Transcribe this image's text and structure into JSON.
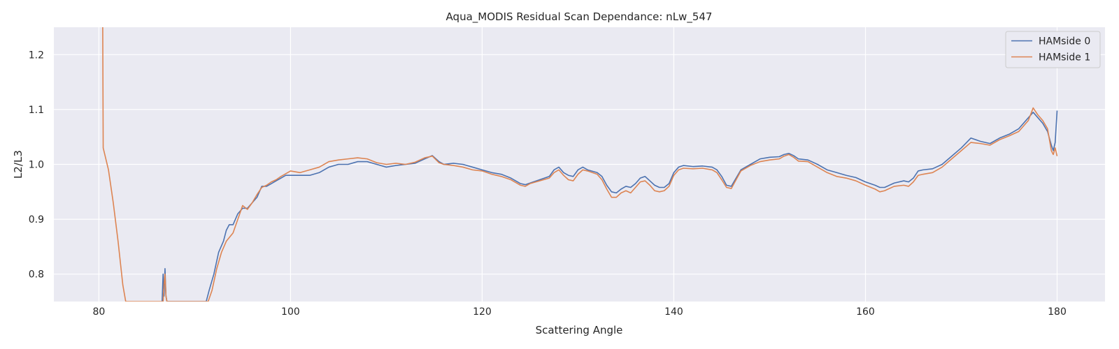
{
  "chart_data": {
    "type": "line",
    "title": "Aqua_MODIS Residual Scan Dependance: nLw_547",
    "xlabel": "Scattering Angle",
    "ylabel": "L2/L3",
    "xlim": [
      75.3,
      185
    ],
    "ylim": [
      0.75,
      1.25
    ],
    "xticks": [
      80,
      100,
      120,
      140,
      160,
      180
    ],
    "yticks": [
      0.8,
      0.9,
      1.0,
      1.1,
      1.2
    ],
    "xtick_labels": [
      "80",
      "100",
      "120",
      "140",
      "160",
      "180"
    ],
    "ytick_labels": [
      "0.8",
      "0.9",
      "1.0",
      "1.1",
      "1.2"
    ],
    "grid": true,
    "legend_position": "top-right",
    "series": [
      {
        "name": "HAMside 0",
        "color": "#4c72b0",
        "points": [
          [
            86.6,
            0.75
          ],
          [
            86.7,
            0.8
          ],
          [
            86.8,
            0.76
          ],
          [
            86.9,
            0.81
          ],
          [
            87.0,
            0.76
          ],
          [
            87.1,
            0.75
          ],
          [
            91.2,
            0.75
          ],
          [
            91.5,
            0.77
          ],
          [
            92.0,
            0.8
          ],
          [
            92.5,
            0.84
          ],
          [
            93.0,
            0.86
          ],
          [
            93.3,
            0.88
          ],
          [
            93.6,
            0.89
          ],
          [
            94.0,
            0.89
          ],
          [
            94.5,
            0.91
          ],
          [
            95.0,
            0.92
          ],
          [
            95.5,
            0.92
          ],
          [
            96.0,
            0.93
          ],
          [
            96.5,
            0.94
          ],
          [
            97.0,
            0.96
          ],
          [
            97.5,
            0.96
          ],
          [
            98.0,
            0.965
          ],
          [
            98.5,
            0.97
          ],
          [
            99.0,
            0.975
          ],
          [
            99.5,
            0.98
          ],
          [
            100.0,
            0.98
          ],
          [
            101.0,
            0.98
          ],
          [
            102.0,
            0.98
          ],
          [
            103.0,
            0.985
          ],
          [
            104.0,
            0.995
          ],
          [
            105.0,
            1.0
          ],
          [
            106.0,
            1.0
          ],
          [
            107.0,
            1.005
          ],
          [
            108.0,
            1.005
          ],
          [
            109.0,
            1.0
          ],
          [
            110.0,
            0.995
          ],
          [
            111.0,
            0.998
          ],
          [
            112.0,
            1.0
          ],
          [
            113.0,
            1.002
          ],
          [
            114.0,
            1.01
          ],
          [
            114.8,
            1.016
          ],
          [
            115.5,
            1.005
          ],
          [
            116.0,
            1.0
          ],
          [
            117.0,
            1.002
          ],
          [
            118.0,
            1.0
          ],
          [
            119.0,
            0.995
          ],
          [
            120.0,
            0.99
          ],
          [
            121.0,
            0.985
          ],
          [
            122.0,
            0.982
          ],
          [
            123.0,
            0.975
          ],
          [
            124.0,
            0.965
          ],
          [
            124.5,
            0.963
          ],
          [
            125.0,
            0.966
          ],
          [
            126.0,
            0.972
          ],
          [
            127.0,
            0.978
          ],
          [
            127.5,
            0.99
          ],
          [
            128.0,
            0.995
          ],
          [
            128.5,
            0.985
          ],
          [
            129.0,
            0.98
          ],
          [
            129.5,
            0.978
          ],
          [
            130.0,
            0.99
          ],
          [
            130.5,
            0.995
          ],
          [
            131.0,
            0.99
          ],
          [
            132.0,
            0.985
          ],
          [
            132.5,
            0.978
          ],
          [
            133.0,
            0.962
          ],
          [
            133.5,
            0.95
          ],
          [
            134.0,
            0.948
          ],
          [
            134.5,
            0.955
          ],
          [
            135.0,
            0.96
          ],
          [
            135.5,
            0.958
          ],
          [
            136.0,
            0.965
          ],
          [
            136.5,
            0.975
          ],
          [
            137.0,
            0.978
          ],
          [
            137.5,
            0.97
          ],
          [
            138.0,
            0.962
          ],
          [
            138.5,
            0.958
          ],
          [
            139.0,
            0.958
          ],
          [
            139.5,
            0.965
          ],
          [
            140.0,
            0.985
          ],
          [
            140.5,
            0.995
          ],
          [
            141.0,
            0.998
          ],
          [
            142.0,
            0.996
          ],
          [
            143.0,
            0.997
          ],
          [
            144.0,
            0.995
          ],
          [
            144.5,
            0.99
          ],
          [
            145.0,
            0.978
          ],
          [
            145.5,
            0.962
          ],
          [
            146.0,
            0.96
          ],
          [
            146.5,
            0.975
          ],
          [
            147.0,
            0.99
          ],
          [
            148.0,
            1.0
          ],
          [
            149.0,
            1.01
          ],
          [
            150.0,
            1.013
          ],
          [
            151.0,
            1.014
          ],
          [
            151.5,
            1.018
          ],
          [
            152.0,
            1.02
          ],
          [
            152.5,
            1.016
          ],
          [
            153.0,
            1.01
          ],
          [
            154.0,
            1.008
          ],
          [
            155.0,
            1.0
          ],
          [
            156.0,
            0.99
          ],
          [
            157.0,
            0.985
          ],
          [
            158.0,
            0.98
          ],
          [
            159.0,
            0.976
          ],
          [
            160.0,
            0.968
          ],
          [
            161.0,
            0.962
          ],
          [
            161.5,
            0.958
          ],
          [
            162.0,
            0.958
          ],
          [
            163.0,
            0.966
          ],
          [
            164.0,
            0.97
          ],
          [
            164.5,
            0.968
          ],
          [
            165.0,
            0.975
          ],
          [
            165.5,
            0.988
          ],
          [
            166.0,
            0.99
          ],
          [
            167.0,
            0.992
          ],
          [
            168.0,
            1.0
          ],
          [
            169.0,
            1.015
          ],
          [
            170.0,
            1.03
          ],
          [
            171.0,
            1.048
          ],
          [
            172.0,
            1.042
          ],
          [
            173.0,
            1.038
          ],
          [
            174.0,
            1.048
          ],
          [
            175.0,
            1.055
          ],
          [
            176.0,
            1.065
          ],
          [
            177.0,
            1.085
          ],
          [
            177.5,
            1.095
          ],
          [
            178.0,
            1.085
          ],
          [
            178.5,
            1.075
          ],
          [
            179.0,
            1.06
          ],
          [
            179.4,
            1.035
          ],
          [
            179.6,
            1.025
          ],
          [
            179.8,
            1.04
          ],
          [
            180.0,
            1.098
          ]
        ]
      },
      {
        "name": "HAMside 1",
        "color": "#dd8452",
        "points": [
          [
            80.4,
            1.25
          ],
          [
            80.45,
            1.03
          ],
          [
            81.0,
            0.99
          ],
          [
            81.5,
            0.93
          ],
          [
            82.0,
            0.86
          ],
          [
            82.5,
            0.78
          ],
          [
            82.8,
            0.75
          ],
          [
            86.7,
            0.75
          ],
          [
            86.8,
            0.78
          ],
          [
            86.9,
            0.8
          ],
          [
            87.0,
            0.76
          ],
          [
            87.1,
            0.75
          ],
          [
            91.4,
            0.75
          ],
          [
            91.8,
            0.77
          ],
          [
            92.3,
            0.81
          ],
          [
            92.8,
            0.84
          ],
          [
            93.3,
            0.86
          ],
          [
            94.0,
            0.875
          ],
          [
            94.5,
            0.9
          ],
          [
            95.0,
            0.925
          ],
          [
            95.5,
            0.918
          ],
          [
            96.0,
            0.93
          ],
          [
            96.5,
            0.945
          ],
          [
            97.0,
            0.958
          ],
          [
            97.5,
            0.962
          ],
          [
            98.0,
            0.968
          ],
          [
            98.5,
            0.972
          ],
          [
            99.0,
            0.978
          ],
          [
            100.0,
            0.988
          ],
          [
            101.0,
            0.985
          ],
          [
            102.0,
            0.99
          ],
          [
            103.0,
            0.995
          ],
          [
            104.0,
            1.005
          ],
          [
            105.0,
            1.008
          ],
          [
            106.0,
            1.01
          ],
          [
            107.0,
            1.012
          ],
          [
            108.0,
            1.01
          ],
          [
            109.0,
            1.003
          ],
          [
            110.0,
            1.0
          ],
          [
            111.0,
            1.002
          ],
          [
            112.0,
            1.0
          ],
          [
            113.0,
            1.004
          ],
          [
            114.0,
            1.012
          ],
          [
            114.8,
            1.015
          ],
          [
            115.5,
            1.003
          ],
          [
            116.0,
            1.0
          ],
          [
            117.0,
            0.998
          ],
          [
            118.0,
            0.995
          ],
          [
            119.0,
            0.99
          ],
          [
            120.0,
            0.988
          ],
          [
            121.0,
            0.982
          ],
          [
            122.0,
            0.978
          ],
          [
            123.0,
            0.972
          ],
          [
            124.0,
            0.962
          ],
          [
            124.5,
            0.96
          ],
          [
            125.0,
            0.965
          ],
          [
            126.0,
            0.97
          ],
          [
            127.0,
            0.975
          ],
          [
            127.5,
            0.985
          ],
          [
            128.0,
            0.99
          ],
          [
            128.5,
            0.98
          ],
          [
            129.0,
            0.972
          ],
          [
            129.5,
            0.97
          ],
          [
            130.0,
            0.982
          ],
          [
            130.5,
            0.99
          ],
          [
            131.0,
            0.988
          ],
          [
            132.0,
            0.982
          ],
          [
            132.5,
            0.972
          ],
          [
            133.0,
            0.955
          ],
          [
            133.5,
            0.94
          ],
          [
            134.0,
            0.94
          ],
          [
            134.5,
            0.948
          ],
          [
            135.0,
            0.952
          ],
          [
            135.5,
            0.948
          ],
          [
            136.0,
            0.958
          ],
          [
            136.5,
            0.968
          ],
          [
            137.0,
            0.97
          ],
          [
            137.5,
            0.962
          ],
          [
            138.0,
            0.952
          ],
          [
            138.5,
            0.95
          ],
          [
            139.0,
            0.952
          ],
          [
            139.5,
            0.96
          ],
          [
            140.0,
            0.98
          ],
          [
            140.5,
            0.99
          ],
          [
            141.0,
            0.993
          ],
          [
            142.0,
            0.992
          ],
          [
            143.0,
            0.993
          ],
          [
            144.0,
            0.99
          ],
          [
            144.5,
            0.985
          ],
          [
            145.0,
            0.972
          ],
          [
            145.5,
            0.958
          ],
          [
            146.0,
            0.956
          ],
          [
            146.5,
            0.972
          ],
          [
            147.0,
            0.988
          ],
          [
            148.0,
            0.998
          ],
          [
            149.0,
            1.005
          ],
          [
            150.0,
            1.008
          ],
          [
            151.0,
            1.01
          ],
          [
            151.5,
            1.015
          ],
          [
            152.0,
            1.018
          ],
          [
            152.5,
            1.013
          ],
          [
            153.0,
            1.006
          ],
          [
            154.0,
            1.005
          ],
          [
            155.0,
            0.995
          ],
          [
            156.0,
            0.985
          ],
          [
            157.0,
            0.978
          ],
          [
            158.0,
            0.975
          ],
          [
            159.0,
            0.97
          ],
          [
            160.0,
            0.962
          ],
          [
            161.0,
            0.955
          ],
          [
            161.5,
            0.95
          ],
          [
            162.0,
            0.952
          ],
          [
            163.0,
            0.96
          ],
          [
            164.0,
            0.962
          ],
          [
            164.5,
            0.96
          ],
          [
            165.0,
            0.968
          ],
          [
            165.5,
            0.98
          ],
          [
            166.0,
            0.982
          ],
          [
            167.0,
            0.985
          ],
          [
            168.0,
            0.995
          ],
          [
            169.0,
            1.01
          ],
          [
            170.0,
            1.025
          ],
          [
            171.0,
            1.04
          ],
          [
            172.0,
            1.038
          ],
          [
            173.0,
            1.035
          ],
          [
            174.0,
            1.045
          ],
          [
            175.0,
            1.052
          ],
          [
            176.0,
            1.06
          ],
          [
            177.0,
            1.08
          ],
          [
            177.5,
            1.103
          ],
          [
            178.0,
            1.09
          ],
          [
            178.5,
            1.08
          ],
          [
            179.0,
            1.065
          ],
          [
            179.4,
            1.025
          ],
          [
            179.6,
            1.018
          ],
          [
            179.8,
            1.03
          ],
          [
            180.0,
            1.015
          ]
        ]
      }
    ]
  }
}
